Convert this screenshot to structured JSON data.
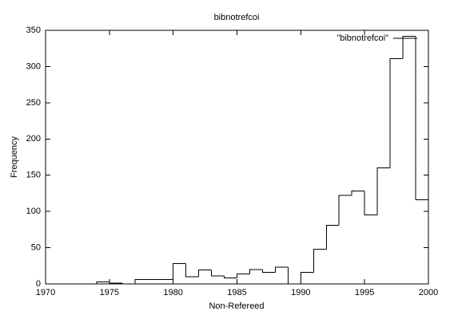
{
  "chart_data": {
    "type": "histogram",
    "title": "bibnotrefcoi",
    "xlabel": "Non-Refereed",
    "ylabel": "Frequency",
    "bins": [
      1974,
      1975,
      1976,
      1977,
      1978,
      1979,
      1980,
      1981,
      1982,
      1983,
      1984,
      1985,
      1986,
      1987,
      1988,
      1989,
      1990,
      1991,
      1992,
      1993,
      1994,
      1995,
      1996,
      1997,
      1998,
      1999,
      2000
    ],
    "series": [
      {
        "name": "\"bibnotrefcoi\"",
        "color": "#000000",
        "values": [
          3,
          1,
          0,
          6,
          6,
          6,
          28,
          10,
          19,
          11,
          8,
          14,
          20,
          16,
          23,
          0,
          16,
          48,
          81,
          122,
          128,
          95,
          160,
          311,
          342,
          116
        ]
      }
    ],
    "xlim": [
      1970,
      2000
    ],
    "xticks": [
      1970,
      1975,
      1980,
      1985,
      1990,
      1995,
      2000
    ],
    "ylim": [
      0,
      350
    ],
    "yticks": [
      0,
      50,
      100,
      150,
      200,
      250,
      300,
      350
    ],
    "legend": "top-right"
  }
}
